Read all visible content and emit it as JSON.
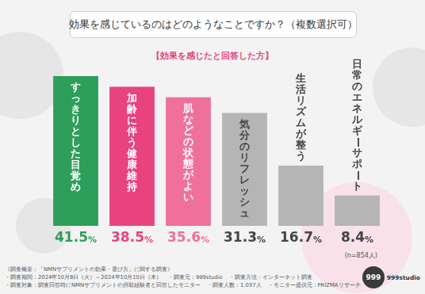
{
  "chart_data": {
    "type": "bar",
    "title": "効果を感じているのはどのようなことですか？（複数選択可）",
    "subtitle": "【効果を感じたと回答した方】",
    "categories": [
      "すっきりとした目覚め",
      "加齢に伴う健康維持",
      "肌などの状態がよい",
      "気分のリフレッシュ",
      "生活リズムが整う",
      "日常のエネルギーサポート"
    ],
    "values": [
      41.5,
      38.5,
      35.6,
      31.3,
      16.7,
      8.4
    ],
    "value_labels": [
      "41.5%",
      "38.5%",
      "35.6%",
      "31.3%",
      "16.7%",
      "8.4%"
    ],
    "colors": [
      "#2e9e5b",
      "#e8427f",
      "#f0709c",
      "#b5b5b5",
      "#b5b5b5",
      "#b5b5b5"
    ],
    "ylim": [
      0,
      45
    ],
    "grid": false,
    "tick_labels": false,
    "data_labels": true,
    "annotation": "(n=854人)"
  },
  "footer": {
    "heading": "《調査概要：「NMNサプリメントの効果・選び方」に関する調査》",
    "rows": [
      [
        "・調査期間：2024年10月8日（火）～2024年10月10日（木）",
        "・調査元：999studio",
        "・調査方法：インターネット調査"
      ],
      [
        "・調査対象：調査回答時にNMNサプリメントの摂取経験者と回答したモニター",
        "・調査人数：1,037人",
        "・モニター提供元：PRIZMAリサーチ"
      ]
    ]
  },
  "logo": {
    "mark": "999",
    "name": "999studio"
  }
}
